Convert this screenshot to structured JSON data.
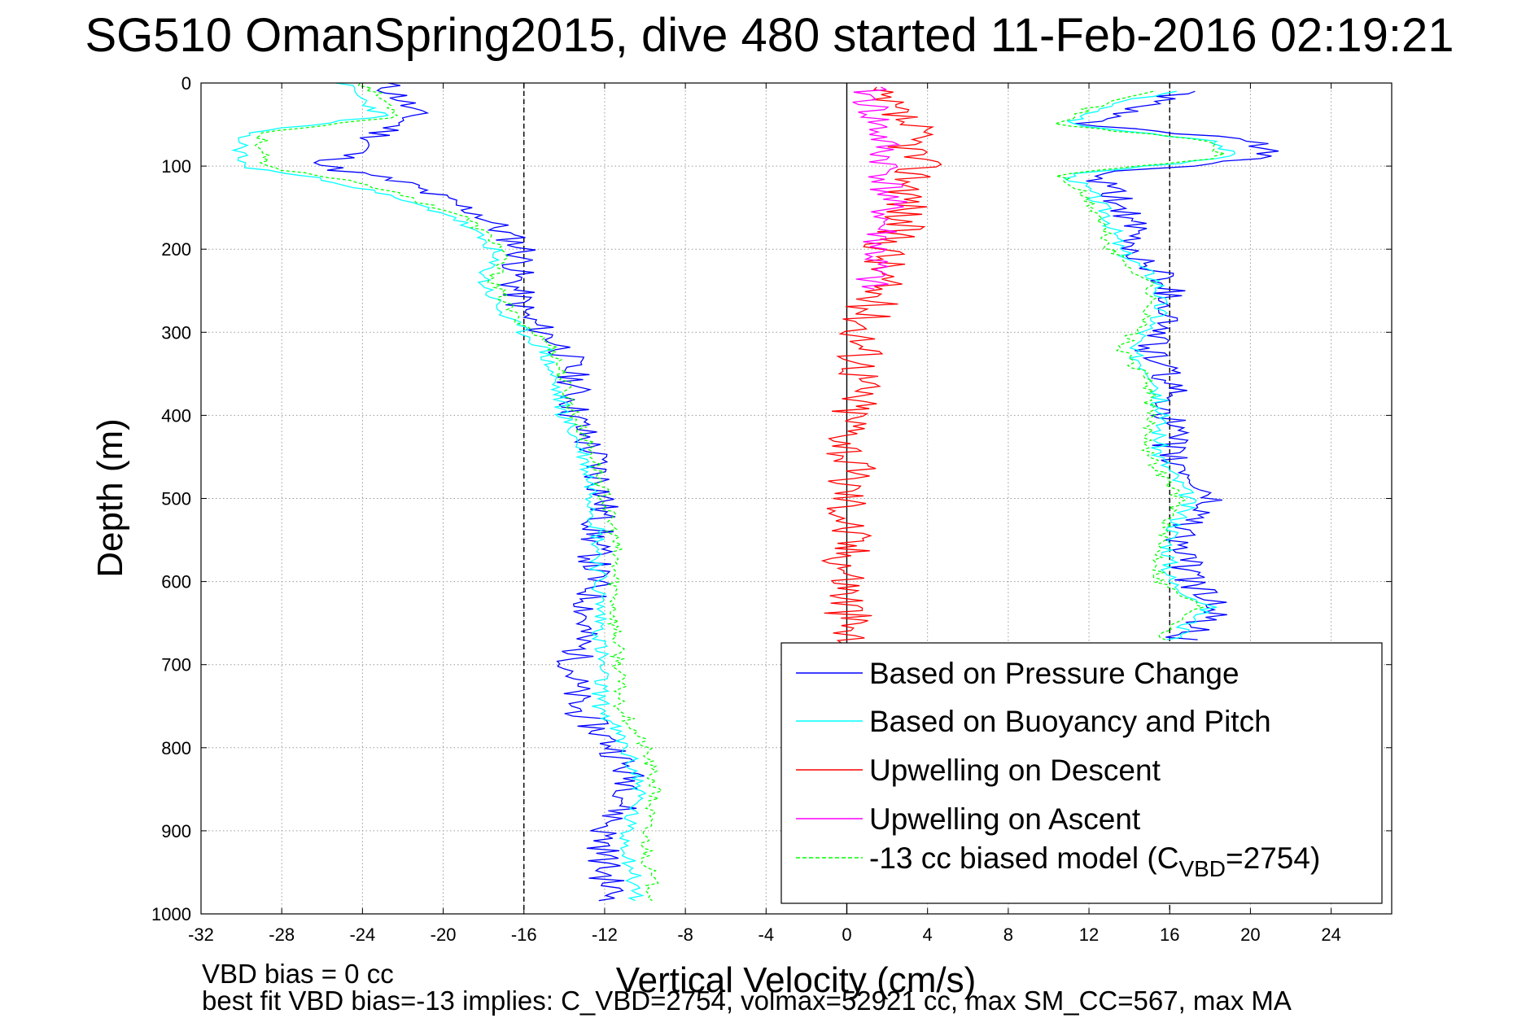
{
  "chart_data": {
    "type": "line",
    "title": "SG510 OmanSpring2015, dive 480 started 11-Feb-2016 02:19:21",
    "xlabel": "Vertical Velocity (cm/s)",
    "ylabel": "Depth (m)",
    "xlim": [
      -32,
      27
    ],
    "ylim": [
      1000,
      0
    ],
    "x_ticks": [
      -32,
      -28,
      -24,
      -20,
      -16,
      -12,
      -8,
      -4,
      0,
      4,
      8,
      12,
      16,
      20,
      24
    ],
    "y_ticks": [
      0,
      100,
      200,
      300,
      400,
      500,
      600,
      700,
      800,
      900,
      1000
    ],
    "grid": true,
    "legend_position": "lower-right",
    "reference_lines": [
      {
        "x": -16,
        "style": "dashed",
        "color": "#000000"
      },
      {
        "x": 16,
        "style": "dashed",
        "color": "#000000"
      },
      {
        "x": 0,
        "style": "solid",
        "color": "#000000"
      }
    ],
    "series": [
      {
        "name": "Based on Pressure Change",
        "color": "#0000ff",
        "depth": [
          0,
          20,
          40,
          60,
          80,
          100,
          120,
          160,
          200,
          240,
          280,
          320,
          360,
          400,
          450,
          500,
          550,
          600,
          650,
          700,
          750,
          800,
          850,
          900,
          950,
          985
        ],
        "velocity": [
          -23,
          -22,
          -21.5,
          -23,
          -24,
          -26,
          -22,
          -18,
          -16,
          -16.5,
          -16,
          -14,
          -13.5,
          -13.5,
          -12.5,
          -12,
          -12.5,
          -12.5,
          -13,
          -13.5,
          -13.5,
          -11.5,
          -10.5,
          -12,
          -12,
          -11.5
        ]
      },
      {
        "name": "Based on Buoyancy and Pitch",
        "color": "#00ffff",
        "depth": [
          0,
          20,
          40,
          60,
          80,
          100,
          120,
          160,
          200,
          240,
          280,
          320,
          360,
          400,
          450,
          500,
          550,
          600,
          650,
          700,
          750,
          800,
          850,
          900,
          950,
          985
        ],
        "velocity": [
          -25,
          -24,
          -23,
          -30,
          -30,
          -30,
          -25,
          -19.5,
          -17.5,
          -18,
          -17,
          -15,
          -14.5,
          -14,
          -13,
          -12.5,
          -12.3,
          -12.3,
          -12.2,
          -12.2,
          -12.2,
          -11,
          -10.2,
          -11,
          -10.6,
          -10.4
        ]
      },
      {
        "name": "Upwelling on Descent",
        "color": "#ff0000",
        "depth": [
          10,
          50,
          100,
          150,
          200,
          250,
          300,
          350,
          400,
          450,
          500,
          550,
          600,
          650,
          680
        ],
        "velocity": [
          1,
          3,
          3.5,
          3,
          2,
          1.5,
          0.8,
          0.8,
          0.3,
          0.2,
          0.1,
          0.1,
          0.1,
          0.1,
          0.1
        ]
      },
      {
        "name": "Upwelling on Ascent",
        "color": "#ff00ff",
        "depth": [
          10,
          50,
          100,
          150,
          200,
          250
        ],
        "velocity": [
          1,
          1.5,
          2,
          2,
          1.5,
          1
        ]
      },
      {
        "name": "-13 cc biased model (C",
        "name_sub": "VBD",
        "name_suffix": "=2754)",
        "color": "#00ff00",
        "style": "dashed",
        "depth": [
          0,
          20,
          40,
          60,
          80,
          100,
          120,
          160,
          200,
          240,
          280,
          320,
          360,
          400,
          450,
          500,
          550,
          600,
          650,
          700,
          750,
          800,
          850,
          900,
          950,
          985
        ],
        "velocity": [
          -24,
          -23,
          -22,
          -29,
          -29,
          -29,
          -24,
          -19,
          -17,
          -17.5,
          -16.5,
          -14.5,
          -14,
          -13.5,
          -12.5,
          -12,
          -11.5,
          -11.5,
          -11.5,
          -11.3,
          -11.2,
          -10,
          -9.5,
          -10,
          -9.8,
          -9.5
        ]
      }
    ],
    "ascent_series": {
      "pressure_change": {
        "depth": [
          10,
          30,
          50,
          70,
          90,
          110,
          130,
          160,
          200,
          240,
          280,
          320,
          360,
          400,
          450,
          500,
          550,
          600,
          630,
          670
        ],
        "velocity": [
          17,
          14,
          12,
          20,
          21,
          12,
          13,
          14,
          14,
          16,
          16,
          15,
          16,
          16,
          16,
          18,
          16.5,
          17,
          18.5,
          16.5
        ]
      },
      "buoyancy_pitch": {
        "depth": [
          10,
          30,
          50,
          70,
          90,
          110,
          130,
          160,
          200,
          240,
          280,
          320,
          360,
          400,
          450,
          500,
          550,
          600,
          630,
          670
        ],
        "velocity": [
          16,
          12.5,
          11,
          18.5,
          19,
          11,
          12,
          13,
          13.5,
          15.5,
          15.5,
          14,
          15.5,
          15.5,
          15.5,
          17,
          16,
          16,
          18,
          16
        ]
      },
      "model": {
        "depth": [
          10,
          30,
          50,
          70,
          90,
          110,
          130,
          160,
          200,
          240,
          280,
          320,
          360,
          400,
          450,
          500,
          550,
          600,
          630,
          670
        ],
        "velocity": [
          15.5,
          12,
          10.5,
          18,
          18.5,
          10.5,
          11.5,
          12.5,
          13,
          15,
          15,
          13.5,
          15,
          15,
          15,
          16.5,
          15.5,
          15.5,
          17.5,
          15.5
        ]
      }
    }
  },
  "annotations": {
    "vbd_bias": "VBD bias = 0 cc",
    "best_fit": "best fit VBD bias=-13 implies: C_VBD=2754, volmax=52921 cc, max SM_CC=567, max MA"
  }
}
